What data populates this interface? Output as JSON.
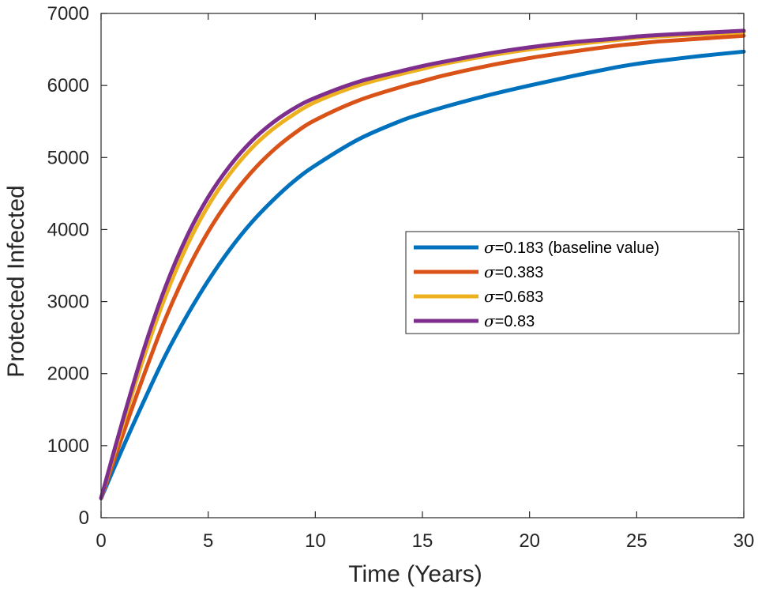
{
  "chart_data": {
    "type": "line",
    "xlabel": "Time (Years)",
    "ylabel": "Protected Infected",
    "xlim": [
      0,
      30
    ],
    "ylim": [
      0,
      7000
    ],
    "xticks": [
      0,
      5,
      10,
      15,
      20,
      25,
      30
    ],
    "yticks": [
      0,
      1000,
      2000,
      3000,
      4000,
      5000,
      6000,
      7000
    ],
    "grid": false,
    "legend_position": "right-middle",
    "x": [
      0,
      1,
      2,
      3,
      4,
      5,
      6,
      7,
      8,
      9,
      10,
      12,
      14,
      15,
      16,
      18,
      20,
      22,
      24,
      25,
      26,
      28,
      30
    ],
    "series": [
      {
        "name": "σ=0.183 (baseline value)",
        "symbol": "σ",
        "label_rest": "=0.183 (baseline value)",
        "color": "#0072BD",
        "values": [
          270,
          960,
          1620,
          2250,
          2800,
          3290,
          3720,
          4090,
          4400,
          4670,
          4890,
          5250,
          5510,
          5610,
          5700,
          5860,
          6000,
          6130,
          6250,
          6300,
          6340,
          6410,
          6470
        ]
      },
      {
        "name": "σ=0.383",
        "symbol": "σ",
        "label_rest": "=0.383",
        "color": "#D95319",
        "values": [
          270,
          1140,
          1980,
          2760,
          3420,
          3970,
          4420,
          4790,
          5090,
          5330,
          5520,
          5790,
          5980,
          6060,
          6140,
          6270,
          6380,
          6470,
          6550,
          6580,
          6610,
          6650,
          6690
        ]
      },
      {
        "name": "σ=0.683",
        "symbol": "σ",
        "label_rest": "=0.683",
        "color": "#EDB120",
        "values": [
          270,
          1280,
          2230,
          3070,
          3770,
          4330,
          4770,
          5120,
          5390,
          5600,
          5770,
          6000,
          6160,
          6230,
          6300,
          6410,
          6500,
          6570,
          6630,
          6660,
          6680,
          6710,
          6740
        ]
      },
      {
        "name": "σ=0.83",
        "symbol": "σ",
        "label_rest": "=0.83",
        "color": "#7E2F8E",
        "values": [
          270,
          1340,
          2340,
          3200,
          3900,
          4450,
          4880,
          5220,
          5480,
          5680,
          5830,
          6050,
          6200,
          6270,
          6330,
          6440,
          6530,
          6600,
          6650,
          6680,
          6700,
          6730,
          6760
        ]
      }
    ]
  }
}
